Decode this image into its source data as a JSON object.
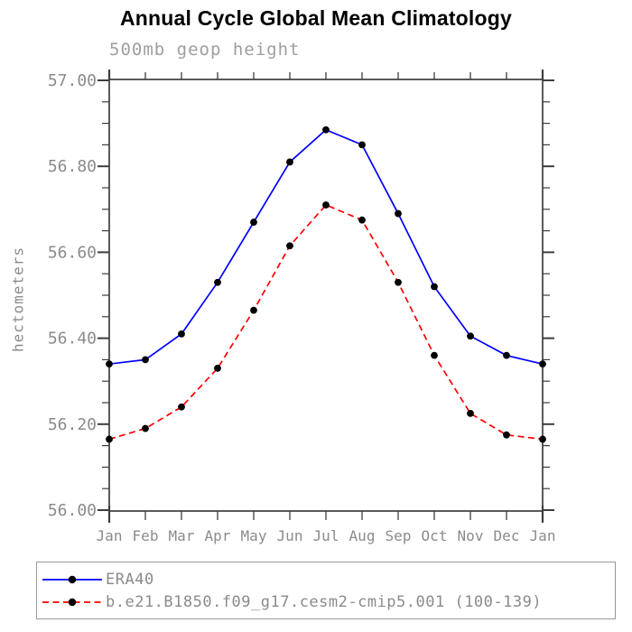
{
  "header": {
    "title": "Annual Cycle Global Mean Climatology",
    "subtitle": "500mb geop height"
  },
  "chart_data": {
    "type": "line",
    "title": "Annual Cycle Global Mean Climatology",
    "subtitle": "500mb geop height",
    "ylabel": "hectometers",
    "xlabel": "",
    "categories": [
      "Jan",
      "Feb",
      "Mar",
      "Apr",
      "May",
      "Jun",
      "Jul",
      "Aug",
      "Sep",
      "Oct",
      "Nov",
      "Dec",
      "Jan"
    ],
    "series": [
      {
        "name": "ERA40",
        "color": "#0000ff",
        "line_style": "solid",
        "marker": "black-dot",
        "values": [
          56.34,
          56.35,
          56.41,
          56.53,
          56.67,
          56.81,
          56.885,
          56.85,
          56.69,
          56.52,
          56.405,
          56.36,
          56.34
        ]
      },
      {
        "name": "b.e21.B1850.f09_g17.cesm2-cmip5.001 (100-139)",
        "color": "#ff0000",
        "line_style": "dashed",
        "marker": "black-dot",
        "values": [
          56.165,
          56.19,
          56.24,
          56.33,
          56.465,
          56.615,
          56.71,
          56.675,
          56.53,
          56.36,
          56.225,
          56.175,
          56.165
        ]
      }
    ],
    "ylim": [
      56.0,
      57.0
    ],
    "y_ticks": [
      {
        "label": "57.00",
        "value": 57.0
      },
      {
        "label": "56.80",
        "value": 56.8
      },
      {
        "label": "56.60",
        "value": 56.6
      },
      {
        "label": "56.40",
        "value": 56.4
      },
      {
        "label": "56.20",
        "value": 56.2
      },
      {
        "label": "56.00",
        "value": 56.0
      }
    ],
    "y_minor_step": 0.05,
    "grid": false,
    "legend_position": "bottom",
    "colors": {
      "frame": "#3d3d3d",
      "tick": "#3d3d3d",
      "label_gray": "#8b8b8b",
      "subtitle_gray": "#9e9e9e",
      "marker": "#000000",
      "legend_border": "#999999"
    }
  }
}
